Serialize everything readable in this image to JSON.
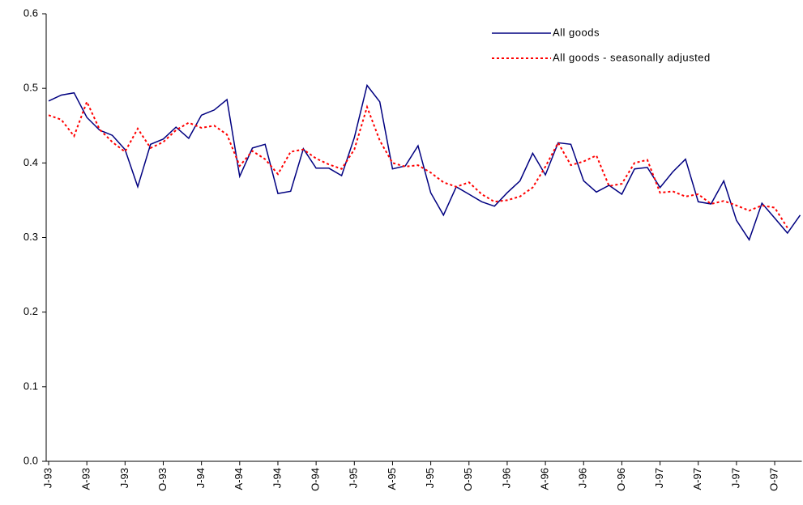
{
  "chart_data": {
    "type": "line",
    "categories": [
      "J-93",
      null,
      null,
      "A-93",
      null,
      null,
      "J-93",
      null,
      null,
      "O-93",
      null,
      null,
      "J-94",
      null,
      null,
      "A-94",
      null,
      null,
      "J-94",
      null,
      null,
      "O-94",
      null,
      null,
      "J-95",
      null,
      null,
      "A-95",
      null,
      null,
      "J-95",
      null,
      null,
      "O-95",
      null,
      null,
      "J-96",
      null,
      null,
      "A-96",
      null,
      null,
      "J-96",
      null,
      null,
      "O-96",
      null,
      null,
      "J-97",
      null,
      null,
      "A-97",
      null,
      null,
      "J-97",
      null,
      null,
      "O-97",
      null,
      null
    ],
    "series": [
      {
        "name": "All goods",
        "color": "#000080",
        "dash": false,
        "values": [
          0.483,
          0.491,
          0.494,
          0.461,
          0.444,
          0.437,
          0.418,
          0.368,
          0.425,
          0.432,
          0.448,
          0.433,
          0.464,
          0.471,
          0.485,
          0.382,
          0.42,
          0.425,
          0.359,
          0.362,
          0.419,
          0.393,
          0.393,
          0.383,
          0.434,
          0.504,
          0.482,
          0.392,
          0.396,
          0.423,
          0.36,
          0.33,
          0.368,
          0.358,
          0.348,
          0.342,
          0.36,
          0.376,
          0.413,
          0.384,
          0.427,
          0.425,
          0.376,
          0.361,
          0.37,
          0.358,
          0.392,
          0.394,
          0.367,
          0.388,
          0.405,
          0.348,
          0.345,
          0.376,
          0.323,
          0.297,
          0.346,
          0.326,
          0.306,
          0.33
        ]
      },
      {
        "name": "All goods - seasonally adjusted",
        "color": "#ff0000",
        "dash": true,
        "values": [
          0.464,
          0.458,
          0.436,
          0.482,
          0.445,
          0.428,
          0.415,
          0.446,
          0.42,
          0.428,
          0.444,
          0.454,
          0.447,
          0.45,
          0.438,
          0.396,
          0.416,
          0.405,
          0.385,
          0.415,
          0.418,
          0.406,
          0.398,
          0.392,
          0.418,
          0.475,
          0.43,
          0.4,
          0.395,
          0.397,
          0.387,
          0.374,
          0.368,
          0.374,
          0.358,
          0.348,
          0.35,
          0.355,
          0.367,
          0.395,
          0.427,
          0.397,
          0.402,
          0.41,
          0.369,
          0.372,
          0.4,
          0.404,
          0.36,
          0.362,
          0.355,
          0.358,
          0.345,
          0.349,
          0.343,
          0.336,
          0.343,
          0.34,
          0.313,
          null
        ]
      }
    ],
    "ylim": [
      0,
      0.6
    ],
    "yticks": [
      {
        "value": 0,
        "label": "0.0"
      },
      0.1,
      0.2,
      0.3,
      0.4,
      0.5,
      0.6
    ],
    "grid": false,
    "legend": "top-right"
  }
}
